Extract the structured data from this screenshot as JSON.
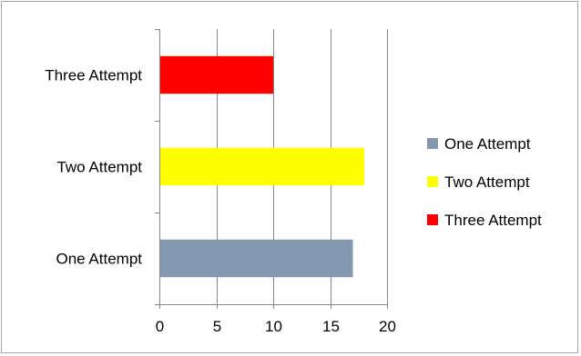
{
  "chart_data": {
    "type": "bar",
    "orientation": "horizontal",
    "categories": [
      "One Attempt",
      "Two Attempt",
      "Three Attempt"
    ],
    "values": [
      17,
      18,
      10
    ],
    "colors": [
      "#8497b0",
      "#ffff00",
      "#ff0000"
    ],
    "xlim": [
      0,
      20
    ],
    "xticks": [
      0,
      5,
      10,
      15,
      20
    ],
    "grid": "vertical",
    "legend": {
      "position": "right",
      "entries": [
        {
          "label": "One Attempt",
          "color": "#8497b0"
        },
        {
          "label": "Two Attempt",
          "color": "#ffff00"
        },
        {
          "label": "Three Attempt",
          "color": "#ff0000"
        }
      ]
    }
  }
}
